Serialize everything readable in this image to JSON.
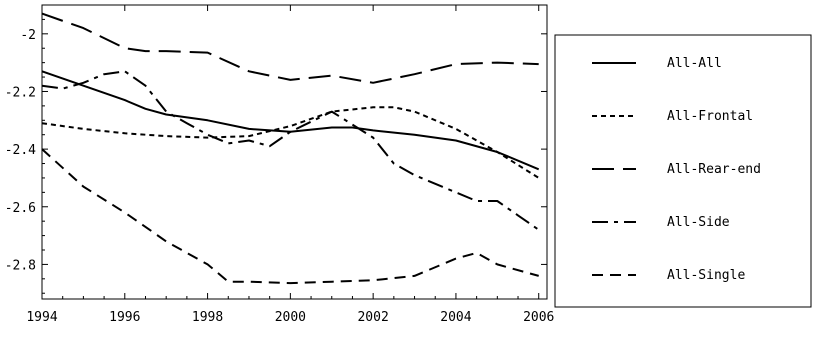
{
  "chart_data": {
    "type": "line",
    "title": "",
    "xlabel": "",
    "ylabel": "",
    "xlim": [
      1994,
      2006.2
    ],
    "ylim": [
      -2.92,
      -1.9
    ],
    "grid": false,
    "legend_placement": "right",
    "xticks": [
      1994,
      1996,
      1998,
      2000,
      2002,
      2004,
      2006
    ],
    "xtick_labels": [
      "1994",
      "1996",
      "1998",
      "2000",
      "2002",
      "2004",
      "2006"
    ],
    "yticks": [
      -2.0,
      -2.2,
      -2.4,
      -2.6,
      -2.8
    ],
    "ytick_labels": [
      "-2",
      "-2.2",
      "-2.4",
      "-2.6",
      "-2.8"
    ],
    "series": [
      {
        "name": "All-All",
        "style": "solid",
        "x": [
          1994,
          1995,
          1996,
          1996.5,
          1997,
          1998,
          1999,
          2000,
          2001,
          2001.5,
          2002,
          2003,
          2004,
          2005,
          2006
        ],
        "y": [
          -2.13,
          -2.18,
          -2.23,
          -2.26,
          -2.28,
          -2.3,
          -2.33,
          -2.34,
          -2.325,
          -2.325,
          -2.335,
          -2.35,
          -2.37,
          -2.41,
          -2.47
        ]
      },
      {
        "name": "All-Frontal",
        "style": "dotted",
        "x": [
          1994,
          1995,
          1996,
          1997,
          1998,
          1999,
          2000,
          2001,
          2002,
          2002.5,
          2003,
          2004,
          2005,
          2006
        ],
        "y": [
          -2.31,
          -2.33,
          -2.345,
          -2.355,
          -2.36,
          -2.355,
          -2.32,
          -2.27,
          -2.255,
          -2.255,
          -2.27,
          -2.33,
          -2.41,
          -2.5
        ]
      },
      {
        "name": "All-Rear-end",
        "style": "long-dash",
        "x": [
          1994,
          1995,
          1996,
          1996.5,
          1997,
          1998,
          1999,
          2000,
          2001,
          2002,
          2003,
          2004,
          2005,
          2006
        ],
        "y": [
          -1.93,
          -1.98,
          -2.05,
          -2.06,
          -2.06,
          -2.065,
          -2.13,
          -2.16,
          -2.145,
          -2.17,
          -2.14,
          -2.105,
          -2.1,
          -2.105
        ]
      },
      {
        "name": "All-Side",
        "style": "dash-dot",
        "x": [
          1994,
          1994.5,
          1995,
          1995.5,
          1996,
          1996.5,
          1997,
          1997.5,
          1998,
          1998.5,
          1999,
          1999.5,
          2000,
          2001,
          2002,
          2002.5,
          2003,
          2004,
          2004.5,
          2005,
          2005.5,
          2006
        ],
        "y": [
          -2.18,
          -2.19,
          -2.17,
          -2.14,
          -2.13,
          -2.18,
          -2.27,
          -2.31,
          -2.35,
          -2.38,
          -2.37,
          -2.39,
          -2.34,
          -2.27,
          -2.36,
          -2.45,
          -2.49,
          -2.55,
          -2.58,
          -2.58,
          -2.63,
          -2.68
        ]
      },
      {
        "name": "All-Single",
        "style": "dashed",
        "x": [
          1994,
          1995,
          1996,
          1997,
          1998,
          1998.5,
          1999,
          2000,
          2001,
          2002,
          2003,
          2004,
          2004.5,
          2005,
          2006
        ],
        "y": [
          -2.4,
          -2.53,
          -2.62,
          -2.72,
          -2.8,
          -2.86,
          -2.86,
          -2.865,
          -2.86,
          -2.855,
          -2.84,
          -2.78,
          -2.76,
          -2.8,
          -2.84
        ]
      }
    ]
  }
}
